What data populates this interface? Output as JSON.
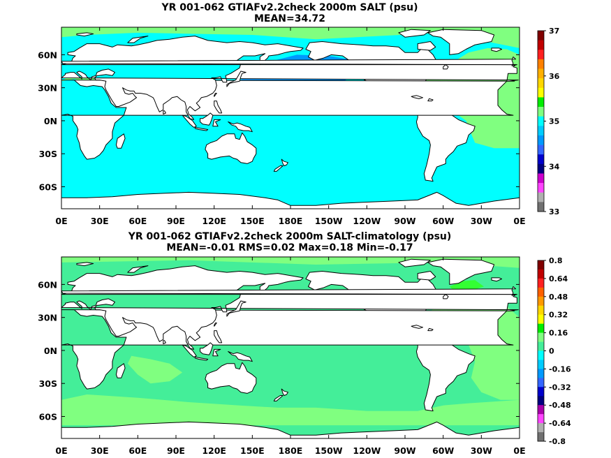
{
  "figure": {
    "colors": {
      "ocean_fresh": "#00ffff",
      "ocean_mid": "#0099ff",
      "ocean_green": "#33ff33",
      "ocean_light_green": "#80ff80",
      "ocean_anom": "#44ee99",
      "land": "#ffffff",
      "coast": "#000000"
    }
  },
  "chart_data": [
    {
      "type": "heatmap",
      "title": "YR 001-062 GTIAFv2.2check 2000m SALT (psu)",
      "subtitle": "MEAN=34.72",
      "x_ticks": [
        "0E",
        "30E",
        "60E",
        "90E",
        "120E",
        "150E",
        "180E",
        "150W",
        "120W",
        "90W",
        "60W",
        "30W",
        "0E"
      ],
      "y_ticks": [
        "60N",
        "30N",
        "0N",
        "30S",
        "60S"
      ],
      "xlim": [
        0,
        360
      ],
      "ylim": [
        -80,
        85
      ],
      "colorbar": {
        "ticks": [
          "37",
          "36",
          "35",
          "34",
          "33"
        ],
        "range": [
          33,
          37
        ],
        "colors": [
          "#800000",
          "#c00000",
          "#ff2020",
          "#ff8000",
          "#ffb000",
          "#ffd700",
          "#ffff00",
          "#00ee00",
          "#80ff80",
          "#00ffff",
          "#00ccff",
          "#0099ff",
          "#3366ff",
          "#0000cc",
          "#000080",
          "#cc00cc",
          "#ff44ff",
          "#b0b0b0",
          "#707070"
        ]
      }
    },
    {
      "type": "heatmap",
      "title": "YR 001-062 GTIAFv2.2check 2000m SALT-climatology (psu)",
      "subtitle": "MEAN=-0.01   RMS=0.02   Max=0.18   Min=-0.17",
      "x_ticks": [
        "0E",
        "30E",
        "60E",
        "90E",
        "120E",
        "150E",
        "180E",
        "150W",
        "120W",
        "90W",
        "60W",
        "30W",
        "0E"
      ],
      "y_ticks": [
        "60N",
        "30N",
        "0N",
        "30S",
        "60S"
      ],
      "xlim": [
        0,
        360
      ],
      "ylim": [
        -80,
        85
      ],
      "colorbar": {
        "ticks": [
          "0.8",
          "0.64",
          "0.48",
          "0.32",
          "0.16",
          "0",
          "-0.16",
          "-0.32",
          "-0.48",
          "-0.64",
          "-0.8"
        ],
        "range": [
          -0.8,
          0.8
        ],
        "colors": [
          "#800000",
          "#c00000",
          "#ff2020",
          "#ff6000",
          "#ff9900",
          "#ffd700",
          "#ffff00",
          "#00ee00",
          "#80ff80",
          "#44ee99",
          "#00ffff",
          "#00ccff",
          "#0099ff",
          "#3366ff",
          "#0000cc",
          "#000080",
          "#aa00aa",
          "#ff44ff",
          "#b0b0b0",
          "#707070"
        ]
      }
    }
  ]
}
